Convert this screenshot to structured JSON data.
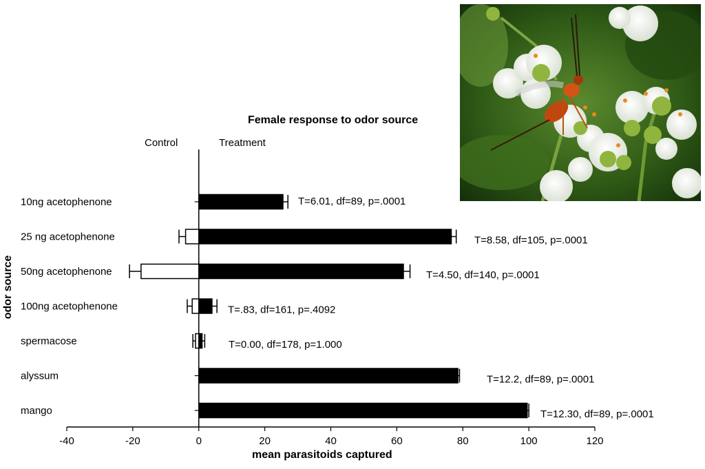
{
  "chart_data": {
    "type": "bar",
    "orientation": "horizontal",
    "title": "Female response to odor source",
    "xlabel": "mean parasitoids captured",
    "ylabel": "odor source",
    "xlim": [
      -40,
      120
    ],
    "xticks": [
      -40,
      -20,
      0,
      20,
      40,
      60,
      80,
      100,
      120
    ],
    "side_labels": {
      "left": "Control",
      "right": "Treatment"
    },
    "categories": [
      "10ng acetophenone",
      "25 ng acetophenone",
      "50ng acetophenone",
      "100ng acetophenone",
      "spermacose",
      "alyssum",
      "mango"
    ],
    "series": [
      {
        "name": "Control",
        "fill": "#ffffff",
        "values": [
          0,
          -4,
          -17.5,
          -2,
          -1,
          0,
          0
        ],
        "errors": [
          0,
          2,
          3.5,
          1.5,
          0.8,
          0,
          0
        ]
      },
      {
        "name": "Treatment",
        "fill": "#000000",
        "values": [
          25.5,
          76.5,
          62,
          4,
          1,
          78.5,
          99.5
        ],
        "errors": [
          1.5,
          1.5,
          2,
          1.5,
          0.8,
          0.5,
          0.5
        ]
      }
    ],
    "annotations": [
      "T=6.01, df=89, p=.0001",
      "T=8.58, df=105, p=.0001",
      "T=4.50, df=140, p=.0001",
      "T=.83, df=161, p=.4092",
      "T=0.00, df=178, p=1.000",
      "T=12.2, df=89, p=.0001",
      "T=12.30, df=89, p=.0001"
    ],
    "grid": false
  },
  "photo": {
    "subject": "parasitoid-wasp-on-white-flowers"
  }
}
